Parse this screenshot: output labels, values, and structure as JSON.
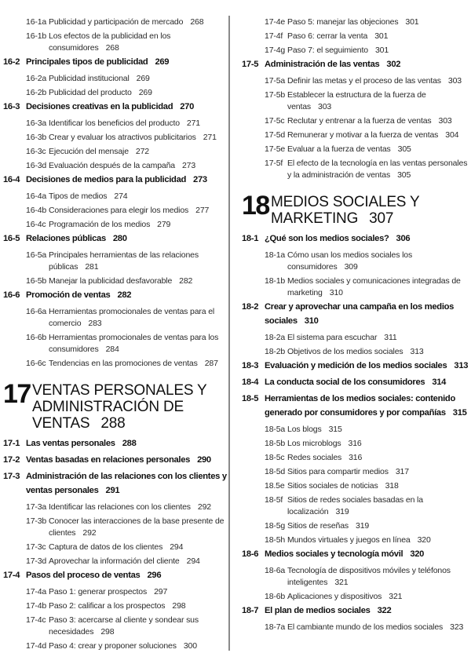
{
  "columns": [
    {
      "entries": [
        {
          "type": "sub",
          "num": "16-1a",
          "text": "Publicidad y participación de mercado",
          "page": "268"
        },
        {
          "type": "sub",
          "num": "16-1b",
          "text": "Los efectos de la publicidad en los consumidores",
          "page": "268"
        },
        {
          "type": "main",
          "num": "16-2",
          "text": "Principales tipos de publicidad",
          "page": "269"
        },
        {
          "type": "sub",
          "num": "16-2a",
          "text": "Publicidad institucional",
          "page": "269"
        },
        {
          "type": "sub",
          "num": "16-2b",
          "text": "Publicidad del producto",
          "page": "269"
        },
        {
          "type": "main",
          "num": "16-3",
          "text": "Decisiones creativas en la publicidad",
          "page": "270"
        },
        {
          "type": "sub",
          "num": "16-3a",
          "text": "Identificar los beneficios del producto",
          "page": "271"
        },
        {
          "type": "sub",
          "num": "16-3b",
          "text": "Crear y evaluar los atractivos publicitarios",
          "page": "271"
        },
        {
          "type": "sub",
          "num": "16-3c",
          "text": "Ejecución del mensaje",
          "page": "272"
        },
        {
          "type": "sub",
          "num": "16-3d",
          "text": "Evaluación después de la campaña",
          "page": "273"
        },
        {
          "type": "main",
          "num": "16-4",
          "text": "Decisiones de medios para la publicidad",
          "page": "273"
        },
        {
          "type": "sub",
          "num": "16-4a",
          "text": "Tipos de medios",
          "page": "274"
        },
        {
          "type": "sub",
          "num": "16-4b",
          "text": "Consideraciones para elegir los medios",
          "page": "277"
        },
        {
          "type": "sub",
          "num": "16-4c",
          "text": "Programación de los medios",
          "page": "279"
        },
        {
          "type": "main",
          "num": "16-5",
          "text": "Relaciones públicas",
          "page": "280"
        },
        {
          "type": "sub",
          "num": "16-5a",
          "text": "Principales herramientas de las relaciones públicas",
          "page": "281"
        },
        {
          "type": "sub",
          "num": "16-5b",
          "text": "Manejar la publicidad desfavorable",
          "page": "282"
        },
        {
          "type": "main",
          "num": "16-6",
          "text": "Promoción de ventas",
          "page": "282"
        },
        {
          "type": "sub",
          "num": "16-6a",
          "text": "Herramientas promocionales de ventas para el comercio",
          "page": "283"
        },
        {
          "type": "sub",
          "num": "16-6b",
          "text": "Herramientas promocionales de ventas para los consumidores",
          "page": "284"
        },
        {
          "type": "sub",
          "num": "16-6c",
          "text": "Tendencias en las promociones de ventas",
          "page": "287"
        },
        {
          "type": "chapter",
          "num": "17",
          "text": "VENTAS PERSONALES Y ADMINISTRACIÓN DE VENTAS",
          "page": "288"
        },
        {
          "type": "main",
          "num": "17-1",
          "text": "Las ventas personales",
          "page": "288"
        },
        {
          "type": "main",
          "num": "17-2",
          "text": "Ventas basadas en relaciones personales",
          "page": "290"
        },
        {
          "type": "main",
          "num": "17-3",
          "text": "Administración de las relaciones con los clientes y ventas personales",
          "page": "291"
        },
        {
          "type": "sub",
          "num": "17-3a",
          "text": "Identificar las relaciones con los clientes",
          "page": "292"
        },
        {
          "type": "sub",
          "num": "17-3b",
          "text": "Conocer las interacciones de la base presente de clientes",
          "page": "292"
        },
        {
          "type": "sub",
          "num": "17-3c",
          "text": "Captura de datos de los clientes",
          "page": "294"
        },
        {
          "type": "sub",
          "num": "17-3d",
          "text": "Aprovechar la información del cliente",
          "page": "294"
        },
        {
          "type": "main",
          "num": "17-4",
          "text": "Pasos del proceso de ventas",
          "page": "296"
        },
        {
          "type": "sub",
          "num": "17-4a",
          "text": "Paso 1: generar prospectos",
          "page": "297"
        },
        {
          "type": "sub",
          "num": "17-4b",
          "text": "Paso 2: calificar a los prospectos",
          "page": "298"
        },
        {
          "type": "sub",
          "num": "17-4c",
          "text": "Paso 3: acercarse al cliente y sondear sus necesidades",
          "page": "298"
        },
        {
          "type": "sub",
          "num": "17-4d",
          "text": "Paso 4: crear y proponer soluciones",
          "page": "300"
        }
      ]
    },
    {
      "entries": [
        {
          "type": "sub",
          "num": "17-4e",
          "text": "Paso 5: manejar las objeciones",
          "page": "301"
        },
        {
          "type": "sub",
          "num": "17-4f",
          "text": "Paso 6: cerrar la venta",
          "page": "301"
        },
        {
          "type": "sub",
          "num": "17-4g",
          "text": "Paso 7: el seguimiento",
          "page": "301"
        },
        {
          "type": "main",
          "num": "17-5",
          "text": "Administración de las ventas",
          "page": "302"
        },
        {
          "type": "sub",
          "num": "17-5a",
          "text": "Definir las metas y el proceso de las ventas",
          "page": "303"
        },
        {
          "type": "sub",
          "num": "17-5b",
          "text": "Establecer la estructura de la fuerza de ventas",
          "page": "303"
        },
        {
          "type": "sub",
          "num": "17-5c",
          "text": "Reclutar y entrenar a la fuerza de ventas",
          "page": "303"
        },
        {
          "type": "sub",
          "num": "17-5d",
          "text": "Remunerar y motivar a la fuerza de ventas",
          "page": "304"
        },
        {
          "type": "sub",
          "num": "17-5e",
          "text": "Evaluar a la fuerza de ventas",
          "page": "305"
        },
        {
          "type": "sub",
          "num": "17-5f",
          "text": "El efecto de la tecnología en las ventas personales y la administración de ventas",
          "page": "305"
        },
        {
          "type": "chapter",
          "num": "18",
          "text": "MEDIOS SOCIALES Y MARKETING",
          "page": "307"
        },
        {
          "type": "main",
          "num": "18-1",
          "text": "¿Qué son los medios sociales?",
          "page": "306"
        },
        {
          "type": "sub",
          "num": "18-1a",
          "text": "Cómo usan los medios sociales los consumidores",
          "page": "309"
        },
        {
          "type": "sub",
          "num": "18-1b",
          "text": "Medios sociales y comunicaciones integradas de marketing",
          "page": "310"
        },
        {
          "type": "main",
          "num": "18-2",
          "text": "Crear y aprovechar una campaña en los medios sociales",
          "page": "310"
        },
        {
          "type": "sub",
          "num": "18-2a",
          "text": "El sistema para escuchar",
          "page": "311"
        },
        {
          "type": "sub",
          "num": "18-2b",
          "text": "Objetivos de los medios sociales",
          "page": "313"
        },
        {
          "type": "main",
          "num": "18-3",
          "text": "Evaluación y medición de los medios sociales",
          "page": "313"
        },
        {
          "type": "main",
          "num": "18-4",
          "text": "La conducta social de los consumidores",
          "page": "314"
        },
        {
          "type": "main",
          "num": "18-5",
          "text": "Herramientas de los medios sociales: contenido generado por consumidores y por compañías",
          "page": "315"
        },
        {
          "type": "sub",
          "num": "18-5a",
          "text": "Los blogs",
          "page": "315"
        },
        {
          "type": "sub",
          "num": "18-5b",
          "text": "Los microblogs",
          "page": "316"
        },
        {
          "type": "sub",
          "num": "18-5c",
          "text": "Redes sociales",
          "page": "316"
        },
        {
          "type": "sub",
          "num": "18-5d",
          "text": "Sitios para compartir medios",
          "page": "317"
        },
        {
          "type": "sub",
          "num": "18.5e",
          "text": "Sitios sociales de noticias",
          "page": "318"
        },
        {
          "type": "sub",
          "num": "18-5f",
          "text": "Sitios de redes sociales basadas en la localización",
          "page": "319"
        },
        {
          "type": "sub",
          "num": "18-5g",
          "text": "Sitios de reseñas",
          "page": "319"
        },
        {
          "type": "sub",
          "num": "18-5h",
          "text": "Mundos virtuales y juegos en línea",
          "page": "320"
        },
        {
          "type": "main",
          "num": "18-6",
          "text": "Medios sociales y tecnología móvil",
          "page": "320"
        },
        {
          "type": "sub",
          "num": "18-6a",
          "text": "Tecnología de dispositivos móviles y teléfonos inteligentes",
          "page": "321"
        },
        {
          "type": "sub",
          "num": "18-6b",
          "text": "Aplicaciones y dispositivos",
          "page": "321"
        },
        {
          "type": "main",
          "num": "18-7",
          "text": "El plan de medios sociales",
          "page": "322"
        },
        {
          "type": "sub",
          "num": "18-7a",
          "text": "El cambiante mundo de los medios sociales",
          "page": "323"
        }
      ]
    }
  ]
}
